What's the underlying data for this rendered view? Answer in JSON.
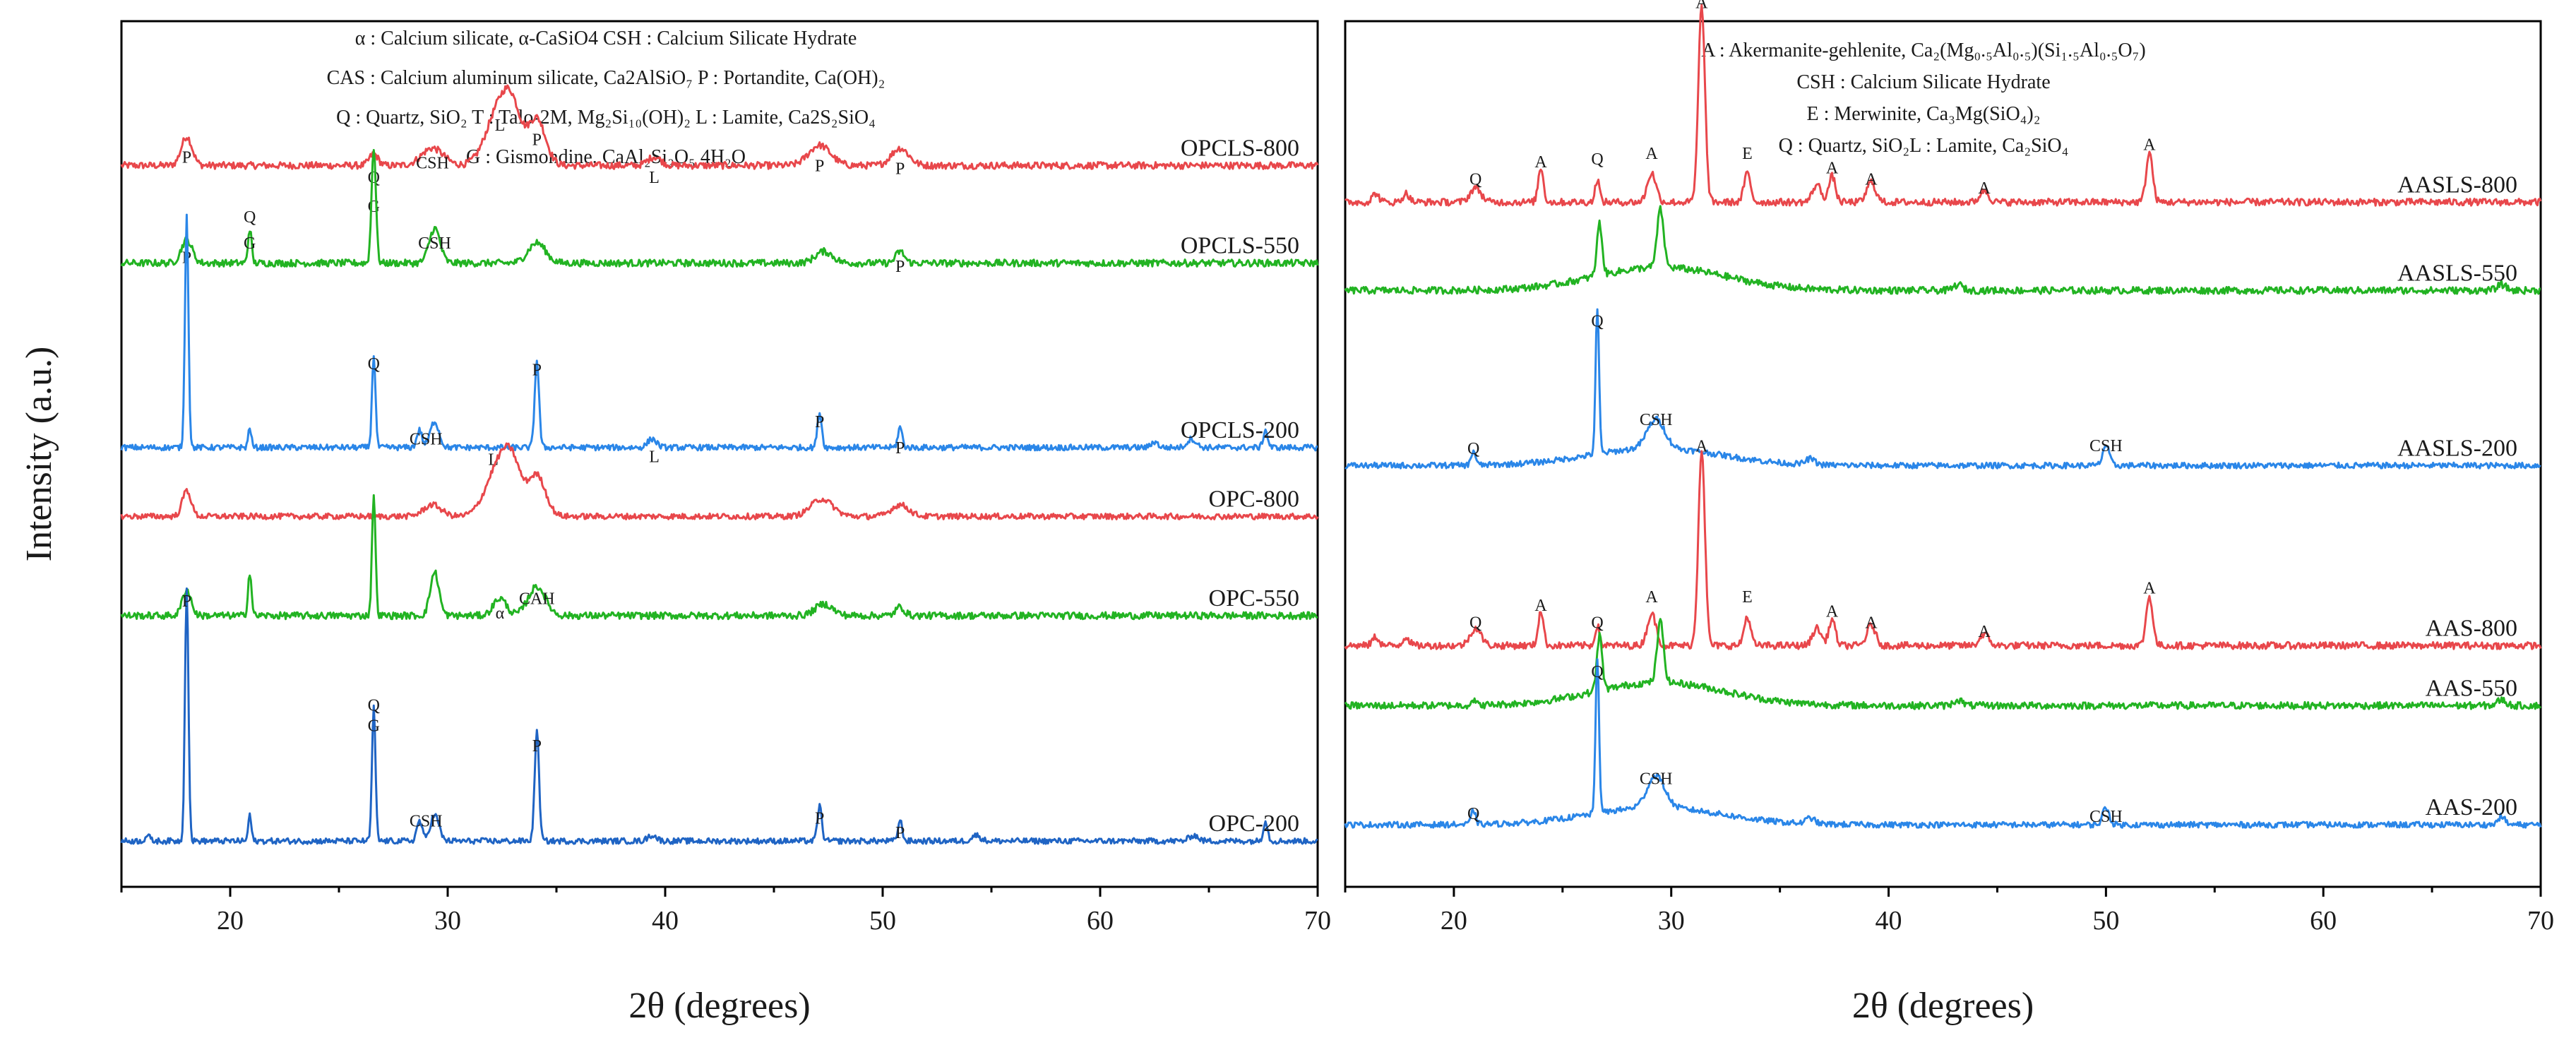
{
  "chart_data": [
    {
      "type": "line",
      "panel": "left",
      "title": "",
      "xlabel": "2θ (degrees)",
      "ylabel": "Intensity (a.u.)",
      "xlim": [
        15,
        70
      ],
      "xticks": [
        "20",
        "30",
        "40",
        "50",
        "60",
        "70"
      ],
      "legend": [
        "α : Calcium silicate, α-CaSiO4     CSH : Calcium Silicate Hydrate",
        "CAS : Calcium aluminum silicate, Ca2AlSiO₇   P : Portandite, Ca(OH)₂",
        "Q : Quartz, SiO₂     T : Talo-2M, Mg₂Si₁₀(OH)₂    L : Lamite, Ca2S₂SiO₄",
        "G : Gismondine, CaAl₂Si₂O₅ 4H₂O"
      ],
      "series": [
        {
          "name": "OPCLS-800",
          "color": "#e8474b",
          "baseline": 0.8,
          "noise": 0.06,
          "peaks": [
            [
              18.0,
              0.5,
              0.25
            ],
            [
              26.6,
              0.2,
              0.2
            ],
            [
              29.3,
              0.3,
              0.5
            ],
            [
              32.4,
              1.0,
              0.6
            ],
            [
              33.0,
              0.6,
              0.4
            ],
            [
              34.1,
              0.8,
              0.4
            ],
            [
              39.5,
              0.15,
              0.3
            ],
            [
              47.1,
              0.35,
              0.5
            ],
            [
              50.8,
              0.3,
              0.4
            ]
          ],
          "labels": [
            {
              "x": 18.0,
              "h": 0.85,
              "text": "P"
            },
            {
              "x": 26.6,
              "h": 0.5,
              "text": "Q"
            },
            {
              "x": 26.6,
              "h": 0.0,
              "text": "G"
            },
            {
              "x": 29.3,
              "h": 0.75,
              "text": "CSH"
            },
            {
              "x": 32.4,
              "h": 1.4,
              "text": "L"
            },
            {
              "x": 34.1,
              "h": 1.15,
              "text": "P"
            },
            {
              "x": 39.5,
              "h": 0.5,
              "text": "L"
            },
            {
              "x": 47.1,
              "h": 0.7,
              "text": "P"
            },
            {
              "x": 50.8,
              "h": 0.65,
              "text": "P"
            }
          ]
        },
        {
          "name": "OPCLS-550",
          "color": "#22b322",
          "baseline": 0.7,
          "noise": 0.06,
          "peaks": [
            [
              18.0,
              0.4,
              0.25
            ],
            [
              20.9,
              0.6,
              0.08
            ],
            [
              26.6,
              2.0,
              0.1
            ],
            [
              29.4,
              0.6,
              0.25
            ],
            [
              34.1,
              0.35,
              0.4
            ],
            [
              47.3,
              0.2,
              0.4
            ],
            [
              50.8,
              0.2,
              0.2
            ]
          ],
          "labels": [
            {
              "x": 18.0,
              "h": 0.7,
              "text": "P"
            },
            {
              "x": 20.9,
              "h": 1.4,
              "text": "Q"
            },
            {
              "x": 20.9,
              "h": 0.95,
              "text": "G"
            },
            {
              "x": 29.4,
              "h": 0.95,
              "text": "CSH"
            },
            {
              "x": 50.8,
              "h": 0.55,
              "text": "P"
            }
          ]
        },
        {
          "name": "OPCLS-200",
          "color": "#2a86e8",
          "baseline": 0.6,
          "noise": 0.05,
          "peaks": [
            [
              18.0,
              4.0,
              0.08
            ],
            [
              20.9,
              0.35,
              0.07
            ],
            [
              26.6,
              1.6,
              0.08
            ],
            [
              28.7,
              0.3,
              0.12
            ],
            [
              29.4,
              0.45,
              0.2
            ],
            [
              34.1,
              1.5,
              0.1
            ],
            [
              39.4,
              0.15,
              0.2
            ],
            [
              47.1,
              0.6,
              0.1
            ],
            [
              50.8,
              0.35,
              0.1
            ],
            [
              62.5,
              0.1,
              0.15
            ],
            [
              64.2,
              0.15,
              0.2
            ],
            [
              67.6,
              0.3,
              0.1
            ]
          ],
          "labels": [
            {
              "x": 26.6,
              "h": 1.95,
              "text": "Q"
            },
            {
              "x": 29.0,
              "h": 0.65,
              "text": "CSH"
            },
            {
              "x": 32.1,
              "h": 0.3,
              "text": "L"
            },
            {
              "x": 34.1,
              "h": 1.85,
              "text": "P"
            },
            {
              "x": 39.5,
              "h": 0.35,
              "text": "L"
            },
            {
              "x": 47.1,
              "h": 0.95,
              "text": "P"
            },
            {
              "x": 50.8,
              "h": 0.5,
              "text": "P"
            }
          ]
        },
        {
          "name": "OPC-800",
          "color": "#e8474b",
          "baseline": 0.35,
          "noise": 0.05,
          "peaks": [
            [
              18.0,
              0.45,
              0.2
            ],
            [
              29.3,
              0.2,
              0.4
            ],
            [
              32.4,
              0.9,
              0.6
            ],
            [
              33.0,
              0.55,
              0.4
            ],
            [
              34.1,
              0.7,
              0.4
            ],
            [
              47.2,
              0.3,
              0.5
            ],
            [
              50.8,
              0.2,
              0.4
            ]
          ],
          "labels": []
        },
        {
          "name": "OPC-550",
          "color": "#22b322",
          "baseline": 0.55,
          "noise": 0.06,
          "peaks": [
            [
              18.0,
              0.45,
              0.2
            ],
            [
              20.9,
              0.75,
              0.08
            ],
            [
              26.6,
              2.1,
              0.08
            ],
            [
              29.4,
              0.75,
              0.2
            ],
            [
              32.4,
              0.3,
              0.3
            ],
            [
              34.1,
              0.5,
              0.4
            ],
            [
              47.3,
              0.2,
              0.4
            ],
            [
              50.8,
              0.15,
              0.2
            ]
          ],
          "labels": [
            {
              "x": 32.4,
              "h": 0.5,
              "text": "α"
            },
            {
              "x": 34.1,
              "h": 0.75,
              "text": "CAH"
            }
          ]
        },
        {
          "name": "OPC-200",
          "color": "#1f64c4",
          "baseline": 0.45,
          "noise": 0.05,
          "peaks": [
            [
              16.2,
              0.1,
              0.1
            ],
            [
              18.0,
              4.4,
              0.08
            ],
            [
              20.9,
              0.45,
              0.07
            ],
            [
              26.6,
              2.3,
              0.08
            ],
            [
              28.7,
              0.35,
              0.12
            ],
            [
              29.4,
              0.45,
              0.2
            ],
            [
              34.1,
              1.9,
              0.1
            ],
            [
              39.4,
              0.1,
              0.2
            ],
            [
              47.1,
              0.6,
              0.1
            ],
            [
              50.8,
              0.35,
              0.1
            ],
            [
              54.3,
              0.1,
              0.2
            ],
            [
              64.3,
              0.1,
              0.2
            ],
            [
              67.6,
              0.35,
              0.1
            ]
          ],
          "labels": [
            {
              "x": 18.0,
              "h": 4.5,
              "text": "P"
            },
            {
              "x": 26.6,
              "h": 2.7,
              "text": "Q"
            },
            {
              "x": 26.6,
              "h": 2.35,
              "text": "G"
            },
            {
              "x": 29.0,
              "h": 0.7,
              "text": "CSH"
            },
            {
              "x": 34.1,
              "h": 2.0,
              "text": "P"
            },
            {
              "x": 47.1,
              "h": 0.75,
              "text": "P"
            },
            {
              "x": 50.8,
              "h": 0.5,
              "text": "P"
            }
          ]
        }
      ]
    },
    {
      "type": "line",
      "panel": "right",
      "title": "",
      "xlabel": "2θ (degrees)",
      "ylabel": "",
      "xlim": [
        15,
        70
      ],
      "xticks": [
        "20",
        "30",
        "40",
        "50",
        "60",
        "70"
      ],
      "legend": [
        "A : Akermanite-gehlenite, Ca₂(Mg₀.₅Al₀.₅)(Si₁.₅Al₀.₅O₇)",
        "CSH : Calcium Silicate Hydrate",
        "E : Merwinite, Ca₃Mg(SiO₄)₂",
        "Q : Quartz, SiO₂L : Lamite, Ca₂SiO₄"
      ],
      "series": [
        {
          "name": "AASLS-800",
          "color": "#e8474b",
          "baseline": 0.35,
          "noise": 0.06,
          "peaks": [
            [
              16.4,
              0.15,
              0.15
            ],
            [
              17.8,
              0.15,
              0.15
            ],
            [
              21.0,
              0.25,
              0.25
            ],
            [
              24.0,
              0.6,
              0.12
            ],
            [
              26.6,
              0.4,
              0.1
            ],
            [
              29.1,
              0.5,
              0.2
            ],
            [
              31.4,
              3.4,
              0.15
            ],
            [
              33.5,
              0.5,
              0.15
            ],
            [
              36.7,
              0.3,
              0.2
            ],
            [
              37.4,
              0.45,
              0.15
            ],
            [
              39.2,
              0.35,
              0.2
            ],
            [
              44.4,
              0.2,
              0.2
            ],
            [
              52.0,
              0.85,
              0.15
            ]
          ],
          "labels": [
            {
              "x": 21.0,
              "h": 0.65,
              "text": "Q"
            },
            {
              "x": 24.0,
              "h": 0.95,
              "text": "A"
            },
            {
              "x": 26.6,
              "h": 1.0,
              "text": "Q"
            },
            {
              "x": 29.1,
              "h": 1.1,
              "text": "A"
            },
            {
              "x": 31.4,
              "h": 3.7,
              "text": "A"
            },
            {
              "x": 33.5,
              "h": 1.1,
              "text": "E"
            },
            {
              "x": 37.4,
              "h": 0.85,
              "text": "A"
            },
            {
              "x": 39.2,
              "h": 0.65,
              "text": "A"
            },
            {
              "x": 44.4,
              "h": 0.5,
              "text": "A"
            },
            {
              "x": 52.0,
              "h": 1.25,
              "text": "A"
            }
          ]
        },
        {
          "name": "AASLS-550",
          "color": "#22b322",
          "baseline": 0.35,
          "noise": 0.06,
          "peaks": [
            [
              26.7,
              0.9,
              0.12
            ],
            [
              29.5,
              1.0,
              0.15
            ],
            [
              29.5,
              0.4,
              3.0
            ],
            [
              43.2,
              0.1,
              0.2
            ],
            [
              68.2,
              0.1,
              0.2
            ]
          ],
          "labels": []
        },
        {
          "name": "AASLS-200",
          "color": "#2a86e8",
          "baseline": 0.35,
          "noise": 0.05,
          "peaks": [
            [
              20.9,
              0.25,
              0.1
            ],
            [
              26.6,
              2.5,
              0.08
            ],
            [
              29.3,
              0.5,
              0.4
            ],
            [
              29.3,
              0.3,
              3.0
            ],
            [
              36.4,
              0.1,
              0.2
            ],
            [
              50.0,
              0.35,
              0.15
            ]
          ],
          "labels": [
            {
              "x": 20.9,
              "h": 0.55,
              "text": "Q"
            },
            {
              "x": 26.6,
              "h": 2.75,
              "text": "Q"
            },
            {
              "x": 29.3,
              "h": 1.05,
              "text": "CSH"
            },
            {
              "x": 50.0,
              "h": 0.6,
              "text": "CSH"
            }
          ]
        },
        {
          "name": "AAS-800",
          "color": "#e8474b",
          "baseline": 0.35,
          "noise": 0.06,
          "peaks": [
            [
              16.4,
              0.15,
              0.15
            ],
            [
              17.8,
              0.15,
              0.15
            ],
            [
              21.0,
              0.3,
              0.25
            ],
            [
              24.0,
              0.6,
              0.12
            ],
            [
              26.6,
              0.35,
              0.1
            ],
            [
              29.1,
              0.55,
              0.2
            ],
            [
              31.4,
              3.4,
              0.15
            ],
            [
              33.5,
              0.5,
              0.15
            ],
            [
              36.7,
              0.3,
              0.2
            ],
            [
              37.4,
              0.45,
              0.15
            ],
            [
              39.2,
              0.35,
              0.2
            ],
            [
              44.4,
              0.2,
              0.2
            ],
            [
              52.0,
              0.85,
              0.15
            ]
          ],
          "labels": [
            {
              "x": 21.0,
              "h": 0.65,
              "text": "Q"
            },
            {
              "x": 24.0,
              "h": 0.95,
              "text": "A"
            },
            {
              "x": 26.6,
              "h": 0.65,
              "text": "Q"
            },
            {
              "x": 29.1,
              "h": 1.1,
              "text": "A"
            },
            {
              "x": 31.4,
              "h": 3.7,
              "text": "A"
            },
            {
              "x": 33.5,
              "h": 1.1,
              "text": "E"
            },
            {
              "x": 37.4,
              "h": 0.85,
              "text": "A"
            },
            {
              "x": 39.2,
              "h": 0.65,
              "text": "A"
            },
            {
              "x": 44.4,
              "h": 0.5,
              "text": "A"
            },
            {
              "x": 52.0,
              "h": 1.25,
              "text": "A"
            }
          ]
        },
        {
          "name": "AAS-550",
          "color": "#22b322",
          "baseline": 0.35,
          "noise": 0.06,
          "peaks": [
            [
              20.9,
              0.1,
              0.1
            ],
            [
              26.7,
              0.95,
              0.12
            ],
            [
              29.5,
              1.05,
              0.15
            ],
            [
              29.5,
              0.4,
              3.0
            ],
            [
              43.2,
              0.1,
              0.2
            ],
            [
              68.2,
              0.1,
              0.2
            ]
          ],
          "labels": []
        },
        {
          "name": "AAS-200",
          "color": "#2a86e8",
          "baseline": 0.45,
          "noise": 0.05,
          "peaks": [
            [
              20.9,
              0.25,
              0.1
            ],
            [
              26.6,
              2.7,
              0.08
            ],
            [
              29.3,
              0.55,
              0.4
            ],
            [
              29.3,
              0.3,
              3.0
            ],
            [
              36.4,
              0.1,
              0.2
            ],
            [
              50.0,
              0.3,
              0.15
            ],
            [
              68.2,
              0.15,
              0.15
            ]
          ],
          "labels": [
            {
              "x": 20.9,
              "h": 0.55,
              "text": "Q"
            },
            {
              "x": 26.6,
              "h": 3.0,
              "text": "Q"
            },
            {
              "x": 29.3,
              "h": 1.15,
              "text": "CSH"
            },
            {
              "x": 50.0,
              "h": 0.5,
              "text": "CSH"
            }
          ]
        }
      ]
    }
  ]
}
